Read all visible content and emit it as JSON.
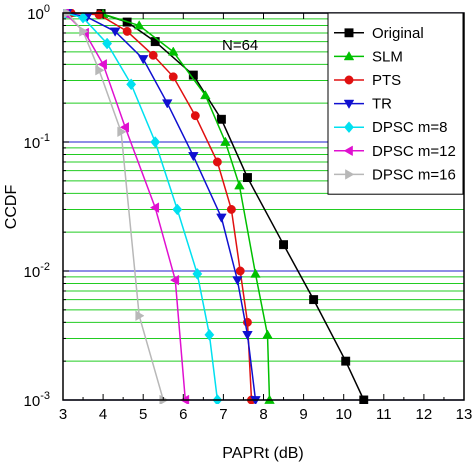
{
  "chart_data": {
    "type": "line",
    "xlabel": "PAPRt (dB)",
    "ylabel": "CCDF",
    "xlim": [
      3,
      13
    ],
    "ylim": [
      0.001,
      1
    ],
    "yscale": "log",
    "xticks": [
      "3",
      "4",
      "5",
      "6",
      "7",
      "8",
      "9",
      "10",
      "11",
      "12",
      "13"
    ],
    "yticks": [
      {
        "value": 1,
        "base": "10",
        "exp": "0"
      },
      {
        "value": 0.1,
        "base": "10",
        "exp": "-1"
      },
      {
        "value": 0.01,
        "base": "10",
        "exp": "-2"
      },
      {
        "value": 0.001,
        "base": "10",
        "exp": "-3"
      }
    ],
    "annotation": "N=64",
    "legend_position": "top-right",
    "grid": true,
    "colors": {
      "major_grid": "#4a4ad8",
      "minor_grid": "#22cc22"
    },
    "series": [
      {
        "name": "Original",
        "color": "#000000",
        "marker": "square",
        "x": [
          3.1,
          3.95,
          4.6,
          5.3,
          6.25,
          6.95,
          7.6,
          8.5,
          9.25,
          10.05,
          10.5
        ],
        "y": [
          1.0,
          0.99,
          0.85,
          0.6,
          0.33,
          0.15,
          0.053,
          0.016,
          0.006,
          0.002,
          0.001
        ]
      },
      {
        "name": "SLM",
        "color": "#00c000",
        "marker": "triangle-up",
        "x": [
          3.2,
          4.0,
          4.9,
          5.75,
          6.55,
          7.05,
          7.4,
          7.8,
          8.1,
          8.15
        ],
        "y": [
          1.0,
          0.98,
          0.8,
          0.5,
          0.23,
          0.1,
          0.046,
          0.0095,
          0.0032,
          0.001
        ]
      },
      {
        "name": "PTS",
        "color": "#e01010",
        "marker": "circle",
        "x": [
          3.2,
          3.9,
          4.6,
          5.25,
          5.75,
          6.3,
          6.85,
          7.2,
          7.42,
          7.6,
          7.7
        ],
        "y": [
          1.0,
          0.97,
          0.72,
          0.47,
          0.32,
          0.16,
          0.07,
          0.03,
          0.01,
          0.004,
          0.001
        ]
      },
      {
        "name": "TR",
        "color": "#1010d0",
        "marker": "triangle-down",
        "x": [
          3.1,
          3.6,
          4.3,
          5.0,
          5.6,
          6.25,
          6.95,
          7.35,
          7.6,
          7.8
        ],
        "y": [
          1.0,
          0.93,
          0.72,
          0.44,
          0.2,
          0.078,
          0.026,
          0.0085,
          0.0032,
          0.001
        ]
      },
      {
        "name": "DPSC m=8",
        "color": "#00e0f0",
        "marker": "diamond",
        "x": [
          3.05,
          3.5,
          4.1,
          4.7,
          5.3,
          5.85,
          6.35,
          6.65,
          6.85
        ],
        "y": [
          1.0,
          0.92,
          0.58,
          0.28,
          0.1,
          0.03,
          0.0095,
          0.0032,
          0.001
        ]
      },
      {
        "name": "DPSC m=12",
        "color": "#e010d0",
        "marker": "triangle-left",
        "x": [
          3.05,
          3.55,
          4.0,
          4.55,
          5.3,
          5.8,
          6.05
        ],
        "y": [
          1.0,
          0.7,
          0.4,
          0.13,
          0.031,
          0.0085,
          0.001
        ]
      },
      {
        "name": "DPSC m=16",
        "color": "#b8b8b8",
        "marker": "triangle-right",
        "x": [
          3.1,
          3.5,
          3.9,
          4.45,
          4.9,
          5.5
        ],
        "y": [
          1.0,
          0.72,
          0.36,
          0.12,
          0.0045,
          0.001
        ]
      }
    ]
  }
}
